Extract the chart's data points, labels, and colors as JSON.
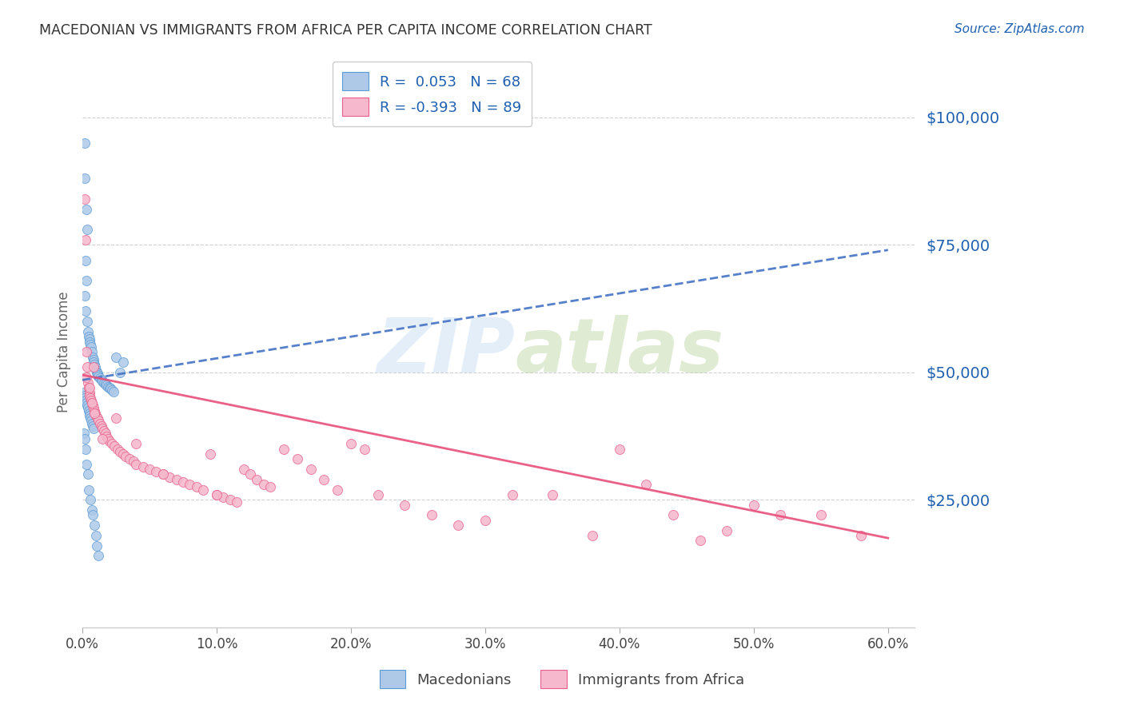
{
  "title": "MACEDONIAN VS IMMIGRANTS FROM AFRICA PER CAPITA INCOME CORRELATION CHART",
  "source_text": "Source: ZipAtlas.com",
  "ylabel": "Per Capita Income",
  "xlabel_ticks": [
    "0.0%",
    "10.0%",
    "20.0%",
    "30.0%",
    "40.0%",
    "50.0%",
    "60.0%"
  ],
  "xlabel_vals": [
    0,
    10,
    20,
    30,
    40,
    50,
    60
  ],
  "ytick_labels": [
    "$25,000",
    "$50,000",
    "$75,000",
    "$100,000"
  ],
  "ytick_vals": [
    25000,
    50000,
    75000,
    100000
  ],
  "xlim": [
    0,
    62
  ],
  "ylim": [
    0,
    108000
  ],
  "ylim_top_grid": 100000,
  "legend_label1": "Macedonians",
  "legend_label2": "Immigrants from Africa",
  "r1": 0.053,
  "n1": 68,
  "r2": -0.393,
  "n2": 89,
  "color_blue_fill": "#aec9e8",
  "color_blue_edge": "#5b9bd5",
  "color_pink_fill": "#f5b8cc",
  "color_pink_edge": "#e8608a",
  "color_blue_line": "#4472c4",
  "color_pink_line": "#e8507a",
  "color_title": "#333333",
  "color_right_labels": "#2060b0",
  "color_legend_text": "#2060b0",
  "color_grid": "#d0d0d0",
  "watermark_color": "#c8dff5",
  "watermark_alpha": 0.5,
  "blue_trend_x0": 0,
  "blue_trend_y0": 48500,
  "blue_trend_x1": 60,
  "blue_trend_y1": 74000,
  "pink_trend_x0": 0,
  "pink_trend_y0": 49500,
  "pink_trend_x1": 60,
  "pink_trend_y1": 17500,
  "blue_dots_x": [
    0.2,
    0.15,
    0.3,
    0.35,
    0.25,
    0.28,
    0.18,
    0.22,
    0.32,
    0.4,
    0.45,
    0.5,
    0.55,
    0.6,
    0.65,
    0.7,
    0.75,
    0.8,
    0.85,
    0.9,
    0.95,
    1.0,
    1.05,
    1.1,
    1.15,
    1.2,
    1.3,
    1.4,
    1.5,
    1.6,
    1.7,
    1.8,
    1.9,
    2.0,
    2.1,
    2.2,
    2.3,
    2.5,
    2.8,
    3.0,
    0.1,
    0.15,
    0.2,
    0.25,
    0.3,
    0.35,
    0.4,
    0.45,
    0.5,
    0.55,
    0.6,
    0.65,
    0.7,
    0.75,
    0.8,
    0.12,
    0.18,
    0.22,
    0.28,
    0.38,
    0.48,
    0.58,
    0.68,
    0.78,
    0.88,
    0.98,
    1.08,
    1.18
  ],
  "blue_dots_y": [
    95000,
    88000,
    82000,
    78000,
    72000,
    68000,
    65000,
    62000,
    60000,
    58000,
    57000,
    56500,
    56000,
    55500,
    55000,
    54000,
    53000,
    52500,
    52000,
    51500,
    51000,
    50500,
    50000,
    49800,
    49500,
    49200,
    48800,
    48500,
    48200,
    48000,
    47800,
    47500,
    47200,
    47000,
    46800,
    46500,
    46200,
    53000,
    50000,
    52000,
    46000,
    45500,
    45000,
    44500,
    44000,
    43500,
    43000,
    42500,
    42000,
    41500,
    41000,
    40500,
    40000,
    39500,
    39000,
    38000,
    37000,
    35000,
    32000,
    30000,
    27000,
    25000,
    23000,
    22000,
    20000,
    18000,
    16000,
    14000
  ],
  "pink_dots_x": [
    0.2,
    0.25,
    0.3,
    0.35,
    0.4,
    0.45,
    0.5,
    0.55,
    0.6,
    0.65,
    0.7,
    0.75,
    0.8,
    0.85,
    0.9,
    0.95,
    1.0,
    1.1,
    1.2,
    1.3,
    1.4,
    1.5,
    1.6,
    1.7,
    1.8,
    1.9,
    2.0,
    2.2,
    2.4,
    2.6,
    2.8,
    3.0,
    3.2,
    3.5,
    3.8,
    4.0,
    4.5,
    5.0,
    5.5,
    6.0,
    6.5,
    7.0,
    7.5,
    8.0,
    8.5,
    9.0,
    9.5,
    10.0,
    10.5,
    11.0,
    11.5,
    12.0,
    12.5,
    13.0,
    13.5,
    14.0,
    15.0,
    16.0,
    17.0,
    18.0,
    19.0,
    20.0,
    21.0,
    22.0,
    24.0,
    26.0,
    28.0,
    30.0,
    32.0,
    35.0,
    38.0,
    40.0,
    42.0,
    44.0,
    46.0,
    48.0,
    50.0,
    52.0,
    55.0,
    58.0,
    0.3,
    0.5,
    0.7,
    0.9,
    1.5,
    2.5,
    4.0,
    6.0,
    10.0
  ],
  "pink_dots_y": [
    84000,
    76000,
    54000,
    51000,
    48000,
    47000,
    46000,
    45500,
    45000,
    44500,
    44000,
    43500,
    51000,
    43000,
    42500,
    42000,
    41500,
    41000,
    40500,
    40000,
    39500,
    39000,
    38500,
    38000,
    37500,
    37000,
    36500,
    36000,
    35500,
    35000,
    34500,
    34000,
    33500,
    33000,
    32500,
    32000,
    31500,
    31000,
    30500,
    30000,
    29500,
    29000,
    28500,
    28000,
    27500,
    27000,
    34000,
    26000,
    25500,
    25000,
    24500,
    31000,
    30000,
    29000,
    28000,
    27500,
    35000,
    33000,
    31000,
    29000,
    27000,
    36000,
    35000,
    26000,
    24000,
    22000,
    20000,
    21000,
    26000,
    26000,
    18000,
    35000,
    28000,
    22000,
    17000,
    19000,
    24000,
    22000,
    22000,
    18000,
    49000,
    47000,
    44000,
    42000,
    37000,
    41000,
    36000,
    30000,
    26000
  ]
}
